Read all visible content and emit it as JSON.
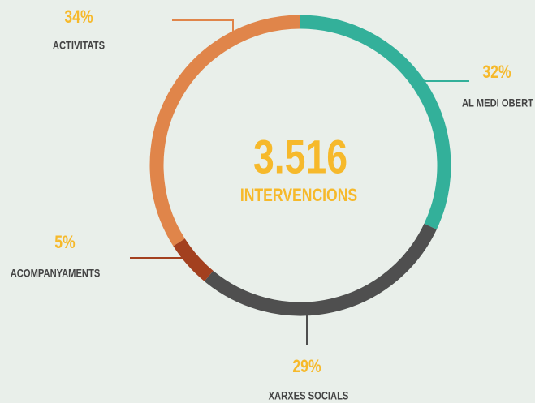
{
  "chart_data": {
    "type": "donut",
    "center_value": "3.516",
    "center_label": "INTERVENCIONS",
    "categories": [
      "AL MEDI OBERT",
      "XARXES SOCIALS",
      "ACOMPANYAMENTS",
      "ACTIVITATS"
    ],
    "values": [
      32,
      29,
      5,
      34
    ],
    "value_labels": [
      "32%",
      "29%",
      "5%",
      "34%"
    ],
    "colors": [
      "#33b09a",
      "#4f4f4f",
      "#a3401f",
      "#e0854a"
    ]
  }
}
